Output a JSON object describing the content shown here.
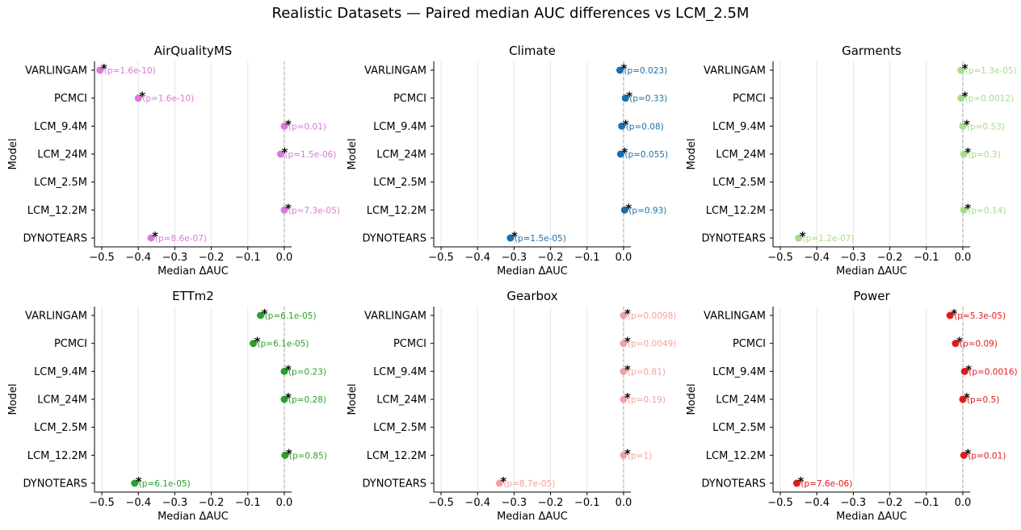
{
  "figure": {
    "title": "Realistic Datasets — Paired median AUC differences vs LCM_2.5M"
  },
  "chart_data": [
    {
      "type": "scatter",
      "title": "AirQualityMS",
      "color": "#d87ad8",
      "xlabel": "Median ΔAUC",
      "ylabel": "Model",
      "xlim": [
        -0.52,
        0.02
      ],
      "xticks": [
        -0.5,
        -0.4,
        -0.3,
        -0.2,
        -0.1,
        0.0
      ],
      "xtick_labels": [
        "−0.5",
        "−0.4",
        "−0.3",
        "−0.2",
        "−0.1",
        "0.0"
      ],
      "categories": [
        "VARLINGAM",
        "PCMCI",
        "LCM_9.4M",
        "LCM_24M",
        "LCM_2.5M",
        "LCM_12.2M",
        "DYNOTEARS"
      ],
      "values": [
        -0.505,
        -0.4,
        0.0,
        -0.01,
        null,
        0.0,
        -0.365
      ],
      "labels": [
        "(p=1.6e-10)",
        "(p=1.6e-10)",
        "(p=0.01)",
        "(p=1.5e-06)",
        null,
        "(p=7.3e-05)",
        "(p=8.6e-07)"
      ],
      "significant": [
        true,
        true,
        true,
        true,
        false,
        true,
        true
      ]
    },
    {
      "type": "scatter",
      "title": "Climate",
      "color": "#1f6fa8",
      "xlabel": "Median ΔAUC",
      "ylabel": "Model",
      "xlim": [
        -0.52,
        0.02
      ],
      "xticks": [
        -0.5,
        -0.4,
        -0.3,
        -0.2,
        -0.1,
        0.0
      ],
      "xtick_labels": [
        "−0.5",
        "−0.4",
        "−0.3",
        "−0.2",
        "−0.1",
        "0.0"
      ],
      "categories": [
        "VARLINGAM",
        "PCMCI",
        "LCM_9.4M",
        "LCM_24M",
        "LCM_2.5M",
        "LCM_12.2M",
        "DYNOTEARS"
      ],
      "values": [
        -0.01,
        0.005,
        -0.005,
        -0.008,
        null,
        0.003,
        -0.31
      ],
      "labels": [
        "(p=0.023)",
        "(p=0.33)",
        "(p=0.08)",
        "(p=0.055)",
        null,
        "(p=0.93)",
        "(p=1.5e-05)"
      ],
      "significant": [
        true,
        true,
        true,
        true,
        false,
        true,
        true
      ]
    },
    {
      "type": "scatter",
      "title": "Garments",
      "color": "#a6dc8a",
      "xlabel": "Median ΔAUC",
      "ylabel": "Model",
      "xlim": [
        -0.52,
        0.02
      ],
      "xticks": [
        -0.5,
        -0.4,
        -0.3,
        -0.2,
        -0.1,
        0.0
      ],
      "xtick_labels": [
        "−0.5",
        "−0.4",
        "−0.3",
        "−0.2",
        "−0.1",
        "0.0"
      ],
      "categories": [
        "VARLINGAM",
        "PCMCI",
        "LCM_9.4M",
        "LCM_24M",
        "LCM_2.5M",
        "LCM_12.2M",
        "DYNOTEARS"
      ],
      "values": [
        -0.005,
        -0.005,
        0.0,
        0.003,
        null,
        0.003,
        -0.45
      ],
      "labels": [
        "(p=1.3e-05)",
        "(p=0.0012)",
        "(p=0.53)",
        "(p=0.3)",
        null,
        "(p=0.14)",
        "(p=1.2e-07)"
      ],
      "significant": [
        true,
        true,
        true,
        true,
        false,
        true,
        true
      ]
    },
    {
      "type": "scatter",
      "title": "ETTm2",
      "color": "#2ca02c",
      "xlabel": "Median ΔAUC",
      "ylabel": "Model",
      "xlim": [
        -0.52,
        0.02
      ],
      "xticks": [
        -0.5,
        -0.4,
        -0.3,
        -0.2,
        -0.1,
        0.0
      ],
      "xtick_labels": [
        "−0.5",
        "−0.4",
        "−0.3",
        "−0.2",
        "−0.1",
        "0.0"
      ],
      "categories": [
        "VARLINGAM",
        "PCMCI",
        "LCM_9.4M",
        "LCM_24M",
        "LCM_2.5M",
        "LCM_12.2M",
        "DYNOTEARS"
      ],
      "values": [
        -0.065,
        -0.085,
        0.0,
        0.0,
        null,
        0.002,
        -0.41
      ],
      "labels": [
        "(p=6.1e-05)",
        "(p=6.1e-05)",
        "(p=0.23)",
        "(p=0.28)",
        null,
        "(p=0.85)",
        "(p=6.1e-05)"
      ],
      "significant": [
        true,
        true,
        true,
        true,
        false,
        true,
        true
      ]
    },
    {
      "type": "scatter",
      "title": "Gearbox",
      "color": "#f4a0a0",
      "xlabel": "Median ΔAUC",
      "ylabel": "Model",
      "xlim": [
        -0.52,
        0.02
      ],
      "xticks": [
        -0.5,
        -0.4,
        -0.3,
        -0.2,
        -0.1,
        0.0
      ],
      "xtick_labels": [
        "−0.5",
        "−0.4",
        "−0.3",
        "−0.2",
        "−0.1",
        "0.0"
      ],
      "categories": [
        "VARLINGAM",
        "PCMCI",
        "LCM_9.4M",
        "LCM_24M",
        "LCM_2.5M",
        "LCM_12.2M",
        "DYNOTEARS"
      ],
      "values": [
        0.0,
        0.0,
        0.0,
        0.0,
        null,
        0.0,
        -0.34
      ],
      "labels": [
        "(p=0.0098)",
        "(p=0.0049)",
        "(p=0.81)",
        "(p=0.19)",
        null,
        "(p=1)",
        "(p=8.7e-05)"
      ],
      "significant": [
        true,
        true,
        true,
        true,
        false,
        true,
        true
      ]
    },
    {
      "type": "scatter",
      "title": "Power",
      "color": "#e31a1c",
      "xlabel": "Median ΔAUC",
      "ylabel": "Model",
      "xlim": [
        -0.52,
        0.02
      ],
      "xticks": [
        -0.5,
        -0.4,
        -0.3,
        -0.2,
        -0.1,
        0.0
      ],
      "xtick_labels": [
        "−0.5",
        "−0.4",
        "−0.3",
        "−0.2",
        "−0.1",
        "0.0"
      ],
      "categories": [
        "VARLINGAM",
        "PCMCI",
        "LCM_9.4M",
        "LCM_24M",
        "LCM_2.5M",
        "LCM_12.2M",
        "DYNOTEARS"
      ],
      "values": [
        -0.035,
        -0.02,
        0.005,
        0.0,
        null,
        0.003,
        -0.455
      ],
      "labels": [
        "(p=5.3e-05)",
        "(p=0.09)",
        "(p=0.0016)",
        "(p=0.5)",
        null,
        "(p=0.01)",
        "(p=7.6e-06)"
      ],
      "significant": [
        true,
        true,
        true,
        true,
        false,
        true,
        true
      ]
    }
  ]
}
